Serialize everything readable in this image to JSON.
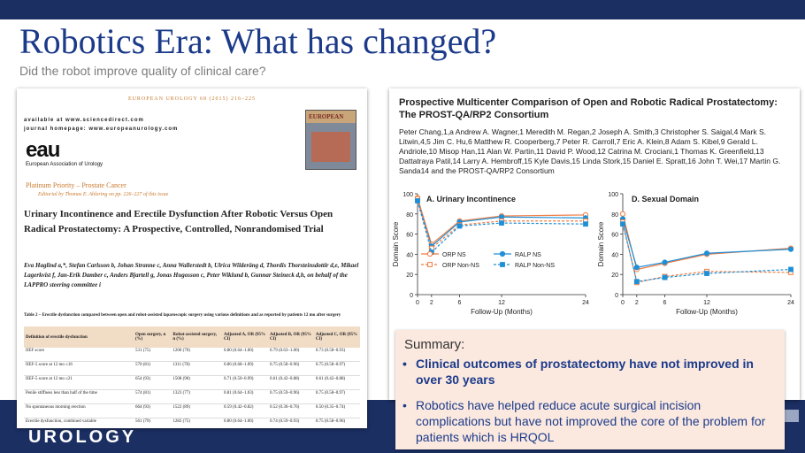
{
  "slide": {
    "title": "Robotics Era: What has changed?",
    "subtitle": "Did the robot improve quality of clinical care?",
    "brand": "UROLOGY"
  },
  "left_paper": {
    "journal_line": "EUROPEAN UROLOGY 68 (2015) 216–225",
    "available_line": "available at www.sciencedirect.com",
    "homepage_line": "journal homepage: www.europeanurology.com",
    "cover_text": "EUROPEAN",
    "logo_text": "eau",
    "logo_caption": "European Association of Urology",
    "priority": "Platinum Priority – Prostate Cancer",
    "editor_line": "Editorial by Thomas E. Ahlering on pp. 226–227 of this issue",
    "title": "Urinary Incontinence and Erectile Dysfunction After Robotic Versus Open Radical Prostatectomy: A Prospective, Controlled, Nonrandomised Trial",
    "authors": "Eva Haglind a,*, Stefan Carlsson b, Johan Stranne c, Anna Wallerstedt b, Ulrica Wilderäng d, Thordis Thorsteinsdottir d,e, Mikael Lagerkvist f, Jan-Erik Damber c, Anders Bjartell g, Jonas Hugosson c, Peter Wiklund b, Gunnar Steineck d,h, on behalf of the LAPPRO steering committee i",
    "table_caption": "Table 2 – Erectile dysfunction compared between open and robot-assisted laparoscopic surgery using various definitions and as reported by patients 12 mo after surgery",
    "table_headers": [
      "Definition of erectile dysfunction",
      "Open surgery, n (%)",
      "Robot-assisted surgery, n (%)",
      "Adjusted A, OR (95% CI)",
      "Adjusted B, OR (95% CI)",
      "Adjusted C, OR (95% CI)"
    ],
    "table_rows": [
      [
        "IIEF score",
        "531 (75)",
        "1200 (70)",
        "0.80 (0.64–1.00)",
        "0.79 (0.63–1.00)",
        "0.73 (0.58–0.93)"
      ],
      [
        "IIEF-5 score at 12 mo ≤16",
        "570 (81)",
        "1311 (78)",
        "0.86 (0.68–1.09)",
        "0.75 (0.58–0.96)",
        "0.75 (0.58–0.97)"
      ],
      [
        "IIEF-5 score at 12 mo ≤21",
        "654 (93)",
        "1508 (90)",
        "0.71 (0.50–0.99)",
        "0.61 (0.42–0.88)",
        "0.61 (0.42–0.88)"
      ],
      [
        "Penile stiffness less than half of the time",
        "574 (81)",
        "1323 (77)",
        "0.81 (0.64–1.03)",
        "0.75 (0.59–0.96)",
        "0.75 (0.58–0.97)"
      ],
      [
        "No spontaneous morning erection",
        "664 (93)",
        "1522 (89)",
        "0.59 (0.42–0.82)",
        "0.52 (0.36–0.76)",
        "0.50 (0.35–0.74)"
      ],
      [
        "Erectile dysfunction, combined variable",
        "561 (79)",
        "1282 (75)",
        "0.80 (0.64–1.00)",
        "0.74 (0.59–0.93)",
        "0.75 (0.58–0.96)"
      ]
    ]
  },
  "right_paper": {
    "title": "Prospective Multicenter Comparison of Open and Robotic Radical Prostatectomy: The PROST-QA/RP2 Consortium",
    "authors": "Peter Chang,1,a Andrew A. Wagner,1 Meredith M. Regan,2 Joseph A. Smith,3 Christopher S. Saigal,4 Mark S. Litwin,4,5 Jim C. Hu,6 Matthew R. Cooperberg,7 Peter R. Carroll,7 Eric A. Klein,8 Adam S. Kibel,9 Gerald L. Andriole,10 Misop Han,11 Alan W. Partin,11 David P. Wood,12 Catrina M. Crociani,1 Thomas K. Greenfield,13 Dattatraya Patil,14 Larry A. Hembroff,15 Kyle Davis,15 Linda Stork,15 Daniel E. Spratt,16 John T. Wei,17 Martin G. Sanda14 and the PROST-QA/RP2 Consortium"
  },
  "summary": {
    "heading": "Summary:",
    "bullet_marker": "•",
    "bullets": [
      "Clinical outcomes of prostatectomy have not improved in over 30 years",
      "Robotics have helped reduce acute surgical incision complications but have not improved the core of the problem for patients which is HRQOL"
    ]
  },
  "chart_data": [
    {
      "type": "line",
      "title": "A. Urinary Incontinence",
      "xlabel": "Follow-Up (Months)",
      "ylabel": "Domain Score",
      "x": [
        0,
        2,
        6,
        12,
        24
      ],
      "xticks": [
        0,
        2,
        6,
        12,
        24
      ],
      "yticks": [
        0,
        20,
        40,
        60,
        80,
        100
      ],
      "xlim": [
        0,
        24
      ],
      "ylim": [
        0,
        100
      ],
      "grid": false,
      "series": [
        {
          "name": "ORP NS",
          "values": [
            96,
            50,
            73,
            78,
            79
          ],
          "color": "#f07b3f",
          "marker": "circle",
          "dashed": false
        },
        {
          "name": "RALP NS",
          "values": [
            94,
            48,
            72,
            77,
            76
          ],
          "color": "#1f8fd6",
          "marker": "circle",
          "dashed": false
        },
        {
          "name": "ORP Non-NS",
          "values": [
            95,
            46,
            69,
            73,
            73
          ],
          "color": "#f07b3f",
          "marker": "square",
          "dashed": true
        },
        {
          "name": "RALP Non-NS",
          "values": [
            93,
            42,
            68,
            71,
            70
          ],
          "color": "#1f8fd6",
          "marker": "square",
          "dashed": true
        }
      ],
      "legend": {
        "position": "bottom",
        "labels": [
          "ORP NS",
          "ORP Non-NS",
          "RALP NS",
          "RALP Non-NS"
        ]
      }
    },
    {
      "type": "line",
      "title": "D. Sexual Domain",
      "xlabel": "Follow-Up (Months)",
      "ylabel": "Domain Score",
      "x": [
        0,
        2,
        6,
        12,
        24
      ],
      "xticks": [
        0,
        2,
        6,
        12,
        24
      ],
      "yticks": [
        0,
        20,
        40,
        60,
        80,
        100
      ],
      "xlim": [
        0,
        24
      ],
      "ylim": [
        0,
        100
      ],
      "grid": false,
      "series": [
        {
          "name": "ORP NS",
          "values": [
            80,
            25,
            31,
            40,
            46
          ],
          "color": "#f07b3f",
          "marker": "circle",
          "dashed": false
        },
        {
          "name": "RALP NS",
          "values": [
            75,
            27,
            32,
            41,
            45
          ],
          "color": "#1f8fd6",
          "marker": "circle",
          "dashed": false
        },
        {
          "name": "ORP Non-NS",
          "values": [
            72,
            12,
            18,
            23,
            22
          ],
          "color": "#f07b3f",
          "marker": "square",
          "dashed": true
        },
        {
          "name": "RALP Non-NS",
          "values": [
            70,
            13,
            17,
            21,
            25
          ],
          "color": "#1f8fd6",
          "marker": "square",
          "dashed": true
        }
      ]
    }
  ]
}
